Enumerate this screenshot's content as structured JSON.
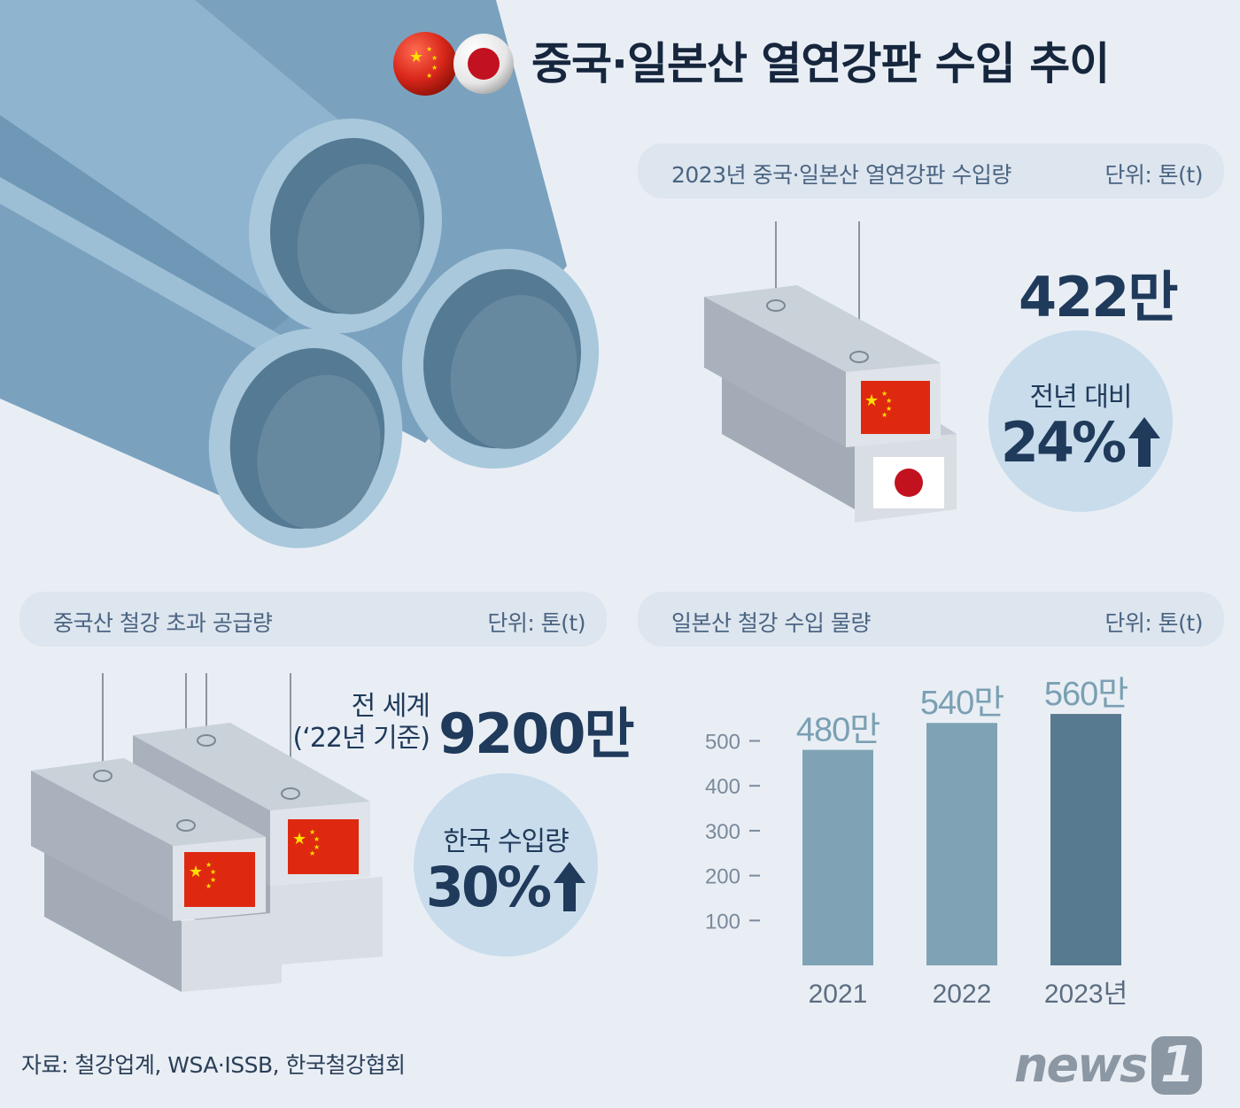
{
  "title": "중국·일본산 열연강판 수입 추이",
  "panel_2023": {
    "header": "2023년 중국·일본산 열연강판 수입량",
    "unit": "단위: 톤(t)",
    "total": "422만",
    "yoy_label": "전년 대비",
    "yoy_value": "24%"
  },
  "panel_china": {
    "header": "중국산 철강 초과 공급량",
    "unit": "단위: 톤(t)",
    "world_label_1": "전 세계",
    "world_label_2": "(‘22년 기준)",
    "world_value": "9200만",
    "korea_label": "한국 수입량",
    "korea_value": "30%"
  },
  "panel_japan": {
    "header": "일본산 철강 수입 물량",
    "unit": "단위: 톤(t)"
  },
  "chart_data": {
    "type": "bar",
    "title": "일본산 철강 수입 물량",
    "unit": "단위: 톤(t)",
    "categories": [
      "2021",
      "2022",
      "2023년"
    ],
    "values": [
      480,
      540,
      560
    ],
    "data_labels": [
      "480만",
      "540만",
      "560만"
    ],
    "y_ticks": [
      100,
      200,
      300,
      400,
      500
    ],
    "ylim": [
      0,
      600
    ],
    "grid": false,
    "bar_colors": [
      "#7fa3b5",
      "#7fa3b5",
      "#587a90"
    ]
  },
  "source": "자료: 철강업계, WSA·ISSB, 한국철강협회",
  "logo": {
    "text": "news",
    "mark": "1"
  },
  "colors": {
    "background": "#e9eef5",
    "navy": "#1f3a5a",
    "pipe": "#7da7c3",
    "china_red": "#de2910",
    "japan_red": "#bc002d"
  },
  "icons": [
    "china-flag-icon",
    "japan-flag-icon",
    "up-arrow-icon"
  ]
}
